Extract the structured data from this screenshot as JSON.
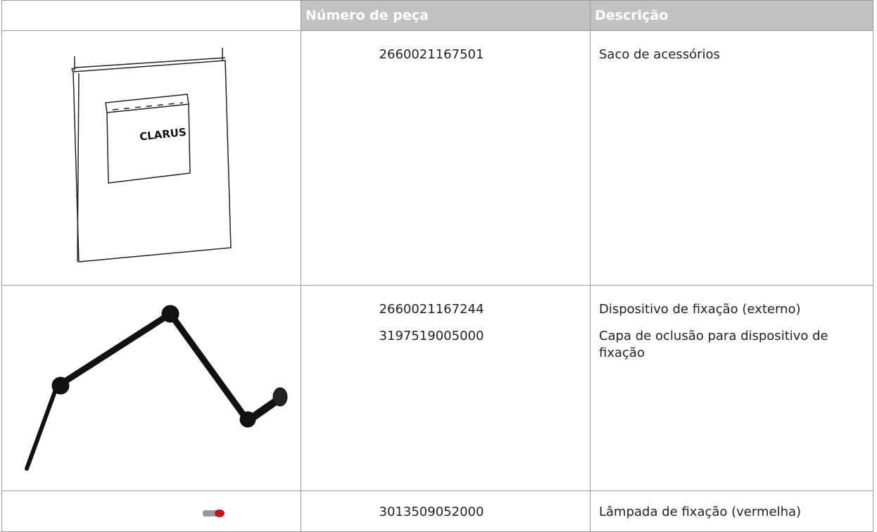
{
  "table": {
    "header": [
      "Número de peça",
      "Descrição"
    ],
    "rows": [
      {
        "image_label": "CLARUS",
        "items": [
          {
            "part": "2660021167501",
            "description": "Saco de acessórios"
          }
        ]
      },
      {
        "items": [
          {
            "part": "2660021167244",
            "description": "Dispositivo de fixação (externo)"
          },
          {
            "part": "3197519005000",
            "description": "Capa de oclusão para dispositivo de fixação"
          }
        ]
      },
      {
        "items": [
          {
            "part": "3013509052000",
            "description": "Lâmpada de fixação (vermelha)"
          }
        ]
      }
    ]
  }
}
